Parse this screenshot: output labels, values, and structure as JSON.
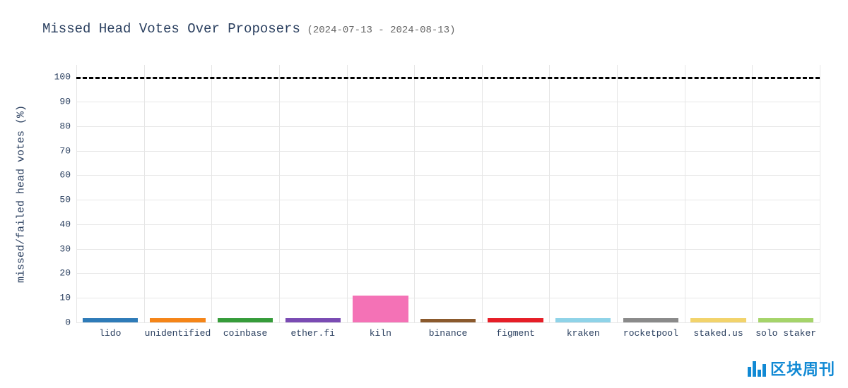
{
  "chart": {
    "type": "bar",
    "title": "Missed Head Votes Over Proposers",
    "subtitle": "(2024-07-13 - 2024-08-13)",
    "title_fontsize": 19,
    "subtitle_fontsize": 14,
    "title_color": "#2a3f5f",
    "y_axis": {
      "label": "missed/failed head votes (%)",
      "label_fontsize": 15,
      "min": 0,
      "max": 105,
      "ticks": [
        0,
        10,
        20,
        30,
        40,
        50,
        60,
        70,
        80,
        90,
        100
      ],
      "tick_fontsize": 13,
      "grid_color": "#e6e6e6"
    },
    "reference_line": {
      "value": 100,
      "color": "#000000",
      "dash": "dashed",
      "width": 3
    },
    "categories": [
      "lido",
      "unidentified",
      "coinbase",
      "ether.fi",
      "kiln",
      "binance",
      "figment",
      "kraken",
      "rocketpool",
      "staked.us",
      "solo staker"
    ],
    "values": [
      1.8,
      1.8,
      1.6,
      1.6,
      11,
      1.5,
      1.6,
      1.6,
      1.8,
      1.6,
      1.8
    ],
    "bar_colors": [
      "#2e7bb8",
      "#f58518",
      "#369c3a",
      "#7a4bb3",
      "#f472b6",
      "#8b5a2d",
      "#e61e27",
      "#8fd3e8",
      "#8a8a8a",
      "#f2d36b",
      "#a5d46a"
    ],
    "bar_width_ratio": 0.82,
    "background_color": "#ffffff",
    "x_tick_fontsize": 13
  },
  "watermark": {
    "text": "区块周刊",
    "color": "#1089d4"
  }
}
